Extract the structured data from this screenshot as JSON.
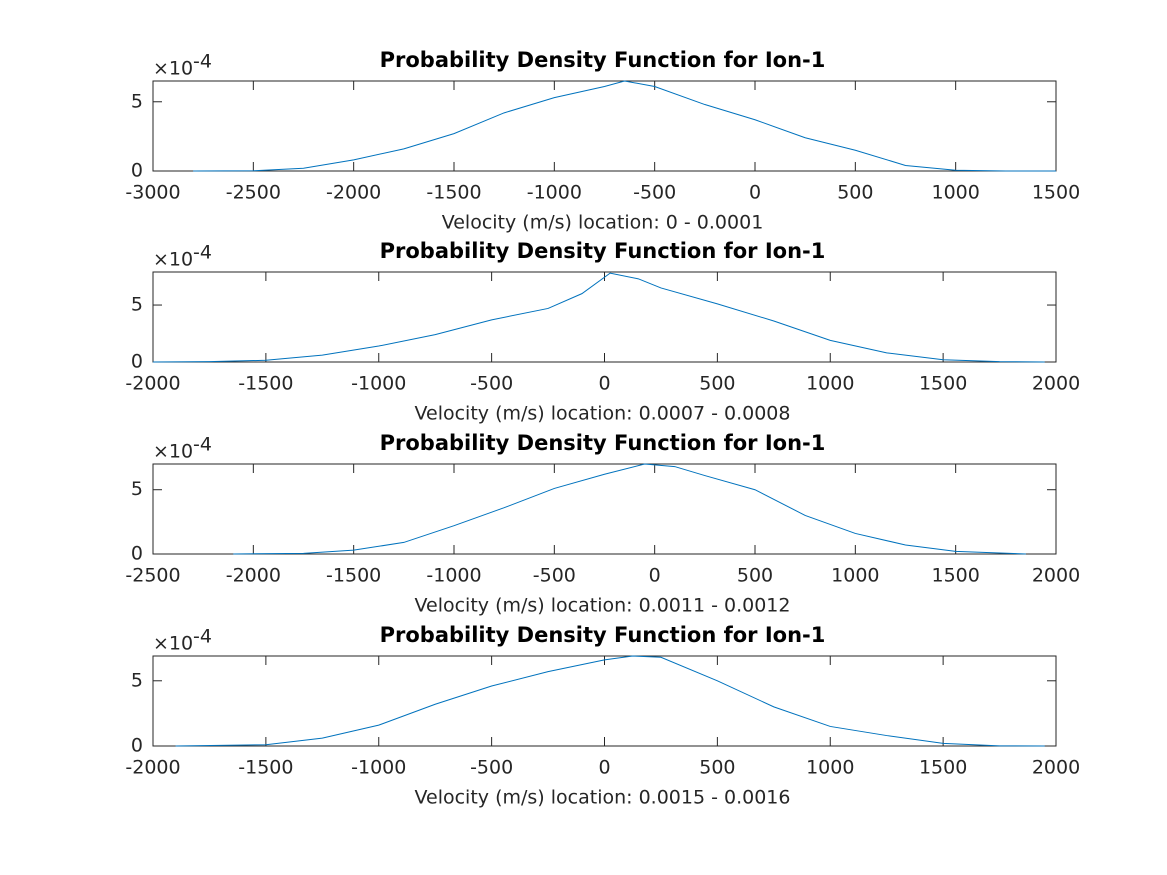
{
  "chart_data": [
    {
      "type": "line",
      "title": "Probability Density Function for Ion-1",
      "xlabel": "Velocity (m/s) location: 0 - 0.0001",
      "y_multiplier": "×10",
      "y_exponent": "-4",
      "x": [
        -2800,
        -2500,
        -2250,
        -2000,
        -1750,
        -1500,
        -1250,
        -1000,
        -750,
        -650,
        -500,
        -250,
        0,
        250,
        500,
        750,
        1000,
        1250,
        1500
      ],
      "series": [
        {
          "color": "#0072bd",
          "values": [
            0,
            0.02,
            0.2,
            0.8,
            1.6,
            2.7,
            4.2,
            5.3,
            6.1,
            6.5,
            6.1,
            4.8,
            3.7,
            2.4,
            1.5,
            0.4,
            0.05,
            0,
            0
          ]
        }
      ],
      "xlim": [
        -3000,
        1500
      ],
      "xticks": [
        -3000,
        -2500,
        -2000,
        -1500,
        -1000,
        -500,
        0,
        500,
        1000,
        1500
      ],
      "ylim": [
        0,
        6.5
      ],
      "yticks": [
        0,
        5
      ]
    },
    {
      "type": "line",
      "title": "Probability Density Function for Ion-1",
      "xlabel": "Velocity (m/s) location: 0.0007 - 0.0008",
      "y_multiplier": "×10",
      "y_exponent": "-4",
      "x": [
        -2000,
        -1750,
        -1500,
        -1250,
        -1000,
        -750,
        -500,
        -250,
        -100,
        25,
        150,
        250,
        500,
        750,
        1000,
        1250,
        1500,
        1750,
        1950
      ],
      "series": [
        {
          "color": "#0072bd",
          "values": [
            0,
            0.03,
            0.15,
            0.6,
            1.4,
            2.4,
            3.7,
            4.7,
            6.0,
            7.8,
            7.3,
            6.5,
            5.1,
            3.6,
            1.9,
            0.8,
            0.2,
            0.03,
            0
          ]
        }
      ],
      "xlim": [
        -2000,
        2000
      ],
      "xticks": [
        -2000,
        -1500,
        -1000,
        -500,
        0,
        500,
        1000,
        1500,
        2000
      ],
      "ylim": [
        0,
        7.9
      ],
      "yticks": [
        0,
        5
      ]
    },
    {
      "type": "line",
      "title": "Probability Density Function for Ion-1",
      "xlabel": "Velocity (m/s) location: 0.0011 - 0.0012",
      "y_multiplier": "×10",
      "y_exponent": "-4",
      "x": [
        -2100,
        -1750,
        -1500,
        -1250,
        -1000,
        -750,
        -500,
        -250,
        -50,
        100,
        250,
        500,
        750,
        1000,
        1250,
        1500,
        1850
      ],
      "series": [
        {
          "color": "#0072bd",
          "values": [
            0,
            0.05,
            0.3,
            0.9,
            2.2,
            3.6,
            5.1,
            6.2,
            7.0,
            6.8,
            6.1,
            5.0,
            3.0,
            1.6,
            0.7,
            0.2,
            0
          ]
        }
      ],
      "xlim": [
        -2500,
        2000
      ],
      "xticks": [
        -2500,
        -2000,
        -1500,
        -1000,
        -500,
        0,
        500,
        1000,
        1500,
        2000
      ],
      "ylim": [
        0,
        7
      ],
      "yticks": [
        0,
        5
      ]
    },
    {
      "type": "line",
      "title": "Probability Density Function for Ion-1",
      "xlabel": "Velocity (m/s) location: 0.0015 - 0.0016",
      "y_multiplier": "×10",
      "y_exponent": "-4",
      "x": [
        -1900,
        -1500,
        -1250,
        -1000,
        -750,
        -500,
        -250,
        0,
        125,
        250,
        500,
        750,
        1000,
        1250,
        1500,
        1750,
        1950
      ],
      "series": [
        {
          "color": "#0072bd",
          "values": [
            0,
            0.1,
            0.6,
            1.6,
            3.2,
            4.6,
            5.7,
            6.6,
            6.9,
            6.8,
            5.0,
            3.0,
            1.5,
            0.8,
            0.2,
            0.01,
            0
          ]
        }
      ],
      "xlim": [
        -2000,
        2000
      ],
      "xticks": [
        -2000,
        -1500,
        -1000,
        -500,
        0,
        500,
        1000,
        1500,
        2000
      ],
      "ylim": [
        0,
        6.9
      ],
      "yticks": [
        0,
        5
      ]
    }
  ]
}
